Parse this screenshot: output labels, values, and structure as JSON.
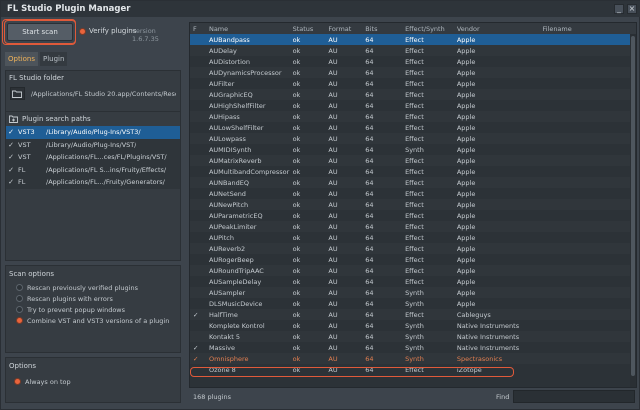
{
  "window": {
    "title": "FL Studio Plugin Manager",
    "min_glyph": "_",
    "close_glyph": "×"
  },
  "toolbar": {
    "start_scan_label": "Start scan",
    "verify_label": "Verify plugins",
    "version": "version 1.6.7.35"
  },
  "tabs": [
    {
      "label": "Options",
      "active": true
    },
    {
      "label": "Plugin",
      "active": false
    }
  ],
  "folder": {
    "header": "FL Studio folder",
    "path": "/Applications/FL Studio 20.app/Contents/Resou..."
  },
  "search_paths": {
    "header": "Plugin search paths",
    "items": [
      {
        "checked": "✓",
        "format": "VST3",
        "path": "/Library/Audio/Plug-Ins/VST3/",
        "selected": true
      },
      {
        "checked": "✓",
        "format": "VST",
        "path": "/Library/Audio/Plug-Ins/VST/",
        "selected": false
      },
      {
        "checked": "✓",
        "format": "VST",
        "path": "/Applications/FL...ces/FL/Plugins/VST/",
        "selected": false
      },
      {
        "checked": "✓",
        "format": "FL",
        "path": "/Applications/FL S...ins/Fruity/Effects/",
        "selected": false
      },
      {
        "checked": "✓",
        "format": "FL",
        "path": "/Applications/FL.../Fruity/Generators/",
        "selected": false
      }
    ]
  },
  "scan_options": {
    "header": "Scan options",
    "items": [
      {
        "label": "Rescan previously verified plugins",
        "on": false
      },
      {
        "label": "Rescan plugins with errors",
        "on": false
      },
      {
        "label": "Try to prevent popup windows",
        "on": false
      },
      {
        "label": "Combine VST and VST3 versions of a plugin",
        "on": true
      }
    ]
  },
  "options": {
    "header": "Options",
    "always_on_top_label": "Always on top",
    "always_on_top_on": true
  },
  "table": {
    "columns": [
      "F",
      "Name",
      "Status",
      "Format",
      "Bits",
      "Effect/Synth",
      "Vendor",
      "Filename"
    ],
    "rows": [
      [
        "",
        "AUBandpass",
        "ok",
        "AU",
        "64",
        "Effect",
        "Apple",
        ""
      ],
      [
        "",
        "AUDelay",
        "ok",
        "AU",
        "64",
        "Effect",
        "Apple",
        ""
      ],
      [
        "",
        "AUDistortion",
        "ok",
        "AU",
        "64",
        "Effect",
        "Apple",
        ""
      ],
      [
        "",
        "AUDynamicsProcessor",
        "ok",
        "AU",
        "64",
        "Effect",
        "Apple",
        ""
      ],
      [
        "",
        "AUFilter",
        "ok",
        "AU",
        "64",
        "Effect",
        "Apple",
        ""
      ],
      [
        "",
        "AUGraphicEQ",
        "ok",
        "AU",
        "64",
        "Effect",
        "Apple",
        ""
      ],
      [
        "",
        "AUHighShelfFilter",
        "ok",
        "AU",
        "64",
        "Effect",
        "Apple",
        ""
      ],
      [
        "",
        "AUHipass",
        "ok",
        "AU",
        "64",
        "Effect",
        "Apple",
        ""
      ],
      [
        "",
        "AULowShelfFilter",
        "ok",
        "AU",
        "64",
        "Effect",
        "Apple",
        ""
      ],
      [
        "",
        "AULowpass",
        "ok",
        "AU",
        "64",
        "Effect",
        "Apple",
        ""
      ],
      [
        "",
        "AUMIDISynth",
        "ok",
        "AU",
        "64",
        "Synth",
        "Apple",
        ""
      ],
      [
        "",
        "AUMatrixReverb",
        "ok",
        "AU",
        "64",
        "Effect",
        "Apple",
        ""
      ],
      [
        "",
        "AUMultibandCompressor",
        "ok",
        "AU",
        "64",
        "Effect",
        "Apple",
        ""
      ],
      [
        "",
        "AUNBandEQ",
        "ok",
        "AU",
        "64",
        "Effect",
        "Apple",
        ""
      ],
      [
        "",
        "AUNetSend",
        "ok",
        "AU",
        "64",
        "Effect",
        "Apple",
        ""
      ],
      [
        "",
        "AUNewPitch",
        "ok",
        "AU",
        "64",
        "Effect",
        "Apple",
        ""
      ],
      [
        "",
        "AUParametricEQ",
        "ok",
        "AU",
        "64",
        "Effect",
        "Apple",
        ""
      ],
      [
        "",
        "AUPeakLimiter",
        "ok",
        "AU",
        "64",
        "Effect",
        "Apple",
        ""
      ],
      [
        "",
        "AUPitch",
        "ok",
        "AU",
        "64",
        "Effect",
        "Apple",
        ""
      ],
      [
        "",
        "AUReverb2",
        "ok",
        "AU",
        "64",
        "Effect",
        "Apple",
        ""
      ],
      [
        "",
        "AURogerBeep",
        "ok",
        "AU",
        "64",
        "Effect",
        "Apple",
        ""
      ],
      [
        "",
        "AURoundTripAAC",
        "ok",
        "AU",
        "64",
        "Effect",
        "Apple",
        ""
      ],
      [
        "",
        "AUSampleDelay",
        "ok",
        "AU",
        "64",
        "Effect",
        "Apple",
        ""
      ],
      [
        "",
        "AUSampler",
        "ok",
        "AU",
        "64",
        "Synth",
        "Apple",
        ""
      ],
      [
        "",
        "DLSMusicDevice",
        "ok",
        "AU",
        "64",
        "Synth",
        "Apple",
        ""
      ],
      [
        "✓",
        "HalfTime",
        "ok",
        "AU",
        "64",
        "Effect",
        "Cableguys",
        ""
      ],
      [
        "",
        "Komplete Kontrol",
        "ok",
        "AU",
        "64",
        "Synth",
        "Native Instruments",
        ""
      ],
      [
        "",
        "Kontakt 5",
        "ok",
        "AU",
        "64",
        "Synth",
        "Native Instruments",
        ""
      ],
      [
        "✓",
        "Massive",
        "ok",
        "AU",
        "64",
        "Synth",
        "Native Instruments",
        ""
      ],
      [
        "✓",
        "Omnisphere",
        "ok",
        "AU",
        "64",
        "Synth",
        "Spectrasonics",
        ""
      ],
      [
        "",
        "Ozone 8",
        "ok",
        "AU",
        "64",
        "Effect",
        "iZotope",
        ""
      ]
    ]
  },
  "status": {
    "count_label": "168 plugins",
    "find_label": "Find",
    "find_value": ""
  },
  "colors": {
    "accent": "#e9643c",
    "selection": "#1f5e96",
    "highlight_outline": "#e05a3a"
  }
}
